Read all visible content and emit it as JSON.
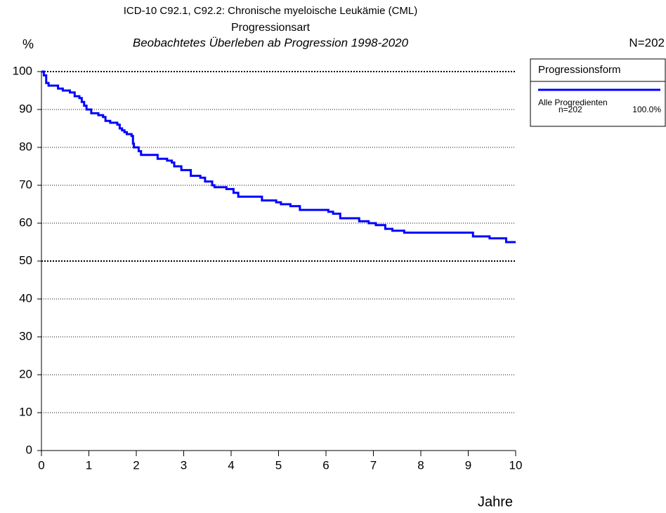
{
  "chart_data": {
    "type": "step-line",
    "title": "ICD-10 C92.1, C92.2: Chronische myeloische Leukämie (CML)",
    "subtitle": "Progressionsart",
    "subtitle2": "Beobachtetes Überleben ab Progression 1998-2020",
    "n_total_label": "N=202",
    "y_label": "%",
    "x_label": "Jahre",
    "xlim": [
      0,
      10
    ],
    "xticks": [
      0,
      1,
      2,
      3,
      4,
      5,
      6,
      7,
      8,
      9,
      10
    ],
    "ylim": [
      0,
      100
    ],
    "yticks": [
      0,
      10,
      20,
      30,
      40,
      50,
      60,
      70,
      80,
      90,
      100
    ],
    "grid": true,
    "reference_lines": [
      50,
      100
    ],
    "legend_title": "Progressionsform",
    "legend": "top-right",
    "series": [
      {
        "name": "Alle Progredienten",
        "n_label": "n=202",
        "share_label": "100.0%",
        "color": "#0000ff",
        "x": [
          0,
          0.05,
          0.1,
          0.15,
          0.35,
          0.45,
          0.6,
          0.7,
          0.8,
          0.85,
          0.9,
          0.95,
          1.05,
          1.2,
          1.3,
          1.35,
          1.45,
          1.6,
          1.65,
          1.7,
          1.75,
          1.8,
          1.9,
          1.93,
          1.95,
          2.05,
          2.1,
          2.45,
          2.65,
          2.75,
          2.8,
          2.95,
          3.15,
          3.35,
          3.45,
          3.6,
          3.65,
          3.9,
          4.05,
          4.15,
          4.65,
          4.95,
          5.05,
          5.25,
          5.45,
          6.05,
          6.15,
          6.3,
          6.7,
          6.9,
          7.05,
          7.25,
          7.4,
          7.65,
          9.1,
          9.45,
          9.8,
          10
        ],
        "values": [
          100,
          99,
          97,
          96.3,
          95.5,
          95,
          94.5,
          93.5,
          93,
          92,
          91,
          90,
          89,
          88.5,
          88,
          87,
          86.5,
          86,
          85,
          84.5,
          84,
          83.5,
          83,
          81,
          80,
          79,
          78,
          77,
          76.5,
          76,
          75,
          74,
          72.5,
          72,
          71,
          70,
          69.5,
          69,
          68,
          67,
          66,
          65.5,
          65,
          64.5,
          63.5,
          63,
          62.5,
          61.3,
          60.5,
          60,
          59.5,
          58.5,
          58,
          57.5,
          56.5,
          56,
          55,
          55
        ]
      }
    ]
  }
}
